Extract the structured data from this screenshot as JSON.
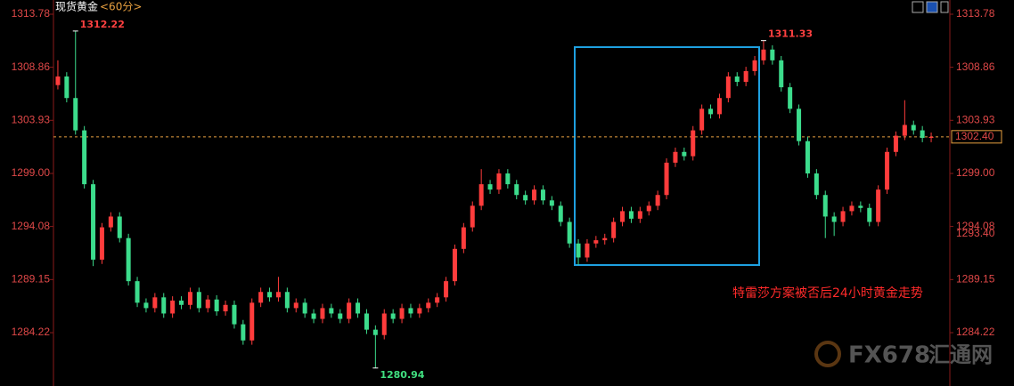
{
  "chart_data": {
    "type": "candlestick",
    "title": "现货黄金",
    "period": "<60分>",
    "annotation": "特雷莎方案被否后24小时黄金走势",
    "up_color": "#ff3c3c",
    "down_color": "#3cdc8c",
    "ylim": [
      1279.27,
      1315.1
    ],
    "yticks": [
      1313.78,
      1308.86,
      1303.93,
      {
        "value": 1299,
        "label": "1299.00"
      },
      1294.08,
      1289.15,
      1284.22
    ],
    "last_price": {
      "value": 1302.4,
      "label": "1302.40"
    },
    "marker_price": {
      "value": 1293.4,
      "label": "1293.40"
    },
    "open": [
      1307.2,
      1308.0,
      1306.0,
      1303.0,
      1298.0,
      1291.0,
      1294.0,
      1295.0,
      1293.0,
      1289.0,
      1287.0,
      1286.5,
      1287.5,
      1286.0,
      1287.2,
      1286.8,
      1288.0,
      1286.5,
      1287.3,
      1286.2,
      1286.8,
      1285.0,
      1283.5,
      1287.0,
      1288.0,
      1287.5,
      1288.0,
      1286.5,
      1287.0,
      1286.0,
      1285.5,
      1286.5,
      1286.0,
      1285.5,
      1287.0,
      1286.0,
      1284.5,
      1284.0,
      1286.0,
      1285.5,
      1286.5,
      1286.0,
      1286.5,
      1287.0,
      1287.5,
      1289.0,
      1292.0,
      1294.0,
      1296.0,
      1298.0,
      1297.5,
      1299.0,
      1298.0,
      1297.0,
      1296.5,
      1297.5,
      1296.5,
      1296.0,
      1294.5,
      1292.5,
      1291.2,
      1292.5,
      1292.8,
      1293.0,
      1294.5,
      1295.5,
      1294.8,
      1295.5,
      1296.0,
      1297.0,
      1300.0,
      1301.0,
      1300.6,
      1303.0,
      1305.0,
      1304.5,
      1306.0,
      1308.0,
      1307.5,
      1308.5,
      1309.5,
      1310.5,
      1309.5,
      1307.0,
      1305.0,
      1302.0,
      1299.0,
      1297.0,
      1295.0,
      1294.5,
      1295.5,
      1296.0,
      1295.8,
      1294.5,
      1297.5,
      1301.0,
      1302.5,
      1303.5,
      1303.0,
      1302.3
    ],
    "high": [
      1309.5,
      1308.4,
      1312.22,
      1303.4,
      1298.4,
      1294.4,
      1295.4,
      1295.4,
      1293.4,
      1289.4,
      1287.4,
      1287.9,
      1287.9,
      1287.6,
      1287.6,
      1288.4,
      1288.4,
      1287.7,
      1287.7,
      1287.2,
      1287.2,
      1285.4,
      1287.4,
      1288.4,
      1288.4,
      1289.4,
      1288.4,
      1287.4,
      1287.4,
      1286.4,
      1286.9,
      1286.9,
      1286.4,
      1287.4,
      1287.4,
      1286.4,
      1284.9,
      1286.4,
      1286.4,
      1286.9,
      1286.9,
      1286.9,
      1287.4,
      1287.9,
      1289.4,
      1292.4,
      1294.4,
      1296.4,
      1299.4,
      1298.4,
      1299.4,
      1299.4,
      1298.4,
      1297.4,
      1297.9,
      1297.9,
      1296.9,
      1296.4,
      1294.9,
      1292.9,
      1292.9,
      1293.2,
      1293.4,
      1294.9,
      1295.9,
      1295.9,
      1295.9,
      1296.4,
      1297.4,
      1300.4,
      1301.4,
      1301.4,
      1303.4,
      1305.4,
      1305.4,
      1306.4,
      1308.4,
      1308.4,
      1308.9,
      1309.9,
      1311.33,
      1310.9,
      1309.9,
      1307.4,
      1305.4,
      1302.4,
      1299.4,
      1297.4,
      1295.4,
      1295.9,
      1296.4,
      1296.4,
      1296.2,
      1297.9,
      1301.4,
      1302.9,
      1305.8,
      1303.9,
      1303.4,
      1302.8
    ],
    "low": [
      1306.8,
      1305.6,
      1302.6,
      1297.6,
      1290.4,
      1290.6,
      1293.6,
      1292.6,
      1288.6,
      1286.6,
      1286.1,
      1286.1,
      1285.6,
      1285.6,
      1286.4,
      1286.4,
      1286.1,
      1286.1,
      1285.8,
      1285.8,
      1284.6,
      1283.1,
      1283.1,
      1286.6,
      1287.1,
      1287.1,
      1286.1,
      1286.1,
      1285.6,
      1285.1,
      1285.1,
      1285.6,
      1285.1,
      1285.1,
      1285.6,
      1284.1,
      1280.94,
      1283.6,
      1285.1,
      1285.1,
      1285.6,
      1285.6,
      1286.1,
      1286.6,
      1287.1,
      1288.6,
      1291.6,
      1293.6,
      1295.6,
      1297.1,
      1297.1,
      1297.6,
      1296.6,
      1296.1,
      1296.1,
      1296.1,
      1295.6,
      1294.1,
      1292.1,
      1290.5,
      1290.8,
      1292.1,
      1292.4,
      1292.6,
      1294.1,
      1294.4,
      1294.4,
      1295.1,
      1295.6,
      1296.6,
      1299.6,
      1300.2,
      1300.2,
      1302.6,
      1304.1,
      1304.1,
      1305.6,
      1307.1,
      1307.1,
      1308.1,
      1309.1,
      1309.1,
      1306.6,
      1304.6,
      1301.6,
      1298.6,
      1296.6,
      1293.0,
      1293.2,
      1294.1,
      1295.1,
      1295.4,
      1294.1,
      1294.1,
      1297.1,
      1300.6,
      1302.1,
      1302.6,
      1301.9,
      1301.9
    ],
    "close": [
      1308.0,
      1306.0,
      1303.0,
      1298.0,
      1291.0,
      1294.0,
      1295.0,
      1293.0,
      1289.0,
      1287.0,
      1286.5,
      1287.5,
      1286.0,
      1287.2,
      1286.8,
      1288.0,
      1286.5,
      1287.3,
      1286.2,
      1286.8,
      1285.0,
      1283.5,
      1287.0,
      1288.0,
      1287.5,
      1288.0,
      1286.5,
      1287.0,
      1286.0,
      1285.5,
      1286.5,
      1286.0,
      1285.5,
      1287.0,
      1286.0,
      1284.5,
      1284.0,
      1286.0,
      1285.5,
      1286.5,
      1286.0,
      1286.5,
      1287.0,
      1287.5,
      1289.0,
      1292.0,
      1294.0,
      1296.0,
      1298.0,
      1297.5,
      1299.0,
      1298.0,
      1297.0,
      1296.5,
      1297.5,
      1296.5,
      1296.0,
      1294.5,
      1292.5,
      1291.2,
      1292.5,
      1292.8,
      1293.0,
      1294.5,
      1295.5,
      1294.8,
      1295.5,
      1296.0,
      1297.0,
      1300.0,
      1301.0,
      1300.6,
      1303.0,
      1305.0,
      1304.5,
      1306.0,
      1308.0,
      1307.5,
      1308.5,
      1309.5,
      1310.5,
      1309.5,
      1307.0,
      1305.0,
      1302.0,
      1299.0,
      1297.0,
      1295.0,
      1294.5,
      1295.5,
      1296.0,
      1295.8,
      1294.5,
      1297.5,
      1301.0,
      1302.5,
      1303.5,
      1303.0,
      1302.3,
      1302.4
    ],
    "extreme_labels": [
      {
        "list": "high",
        "index": 2
      },
      {
        "list": "high",
        "index": 80
      },
      {
        "list": "low",
        "index": 36
      }
    ]
  },
  "watermark": [
    "FX678",
    "汇通网"
  ]
}
